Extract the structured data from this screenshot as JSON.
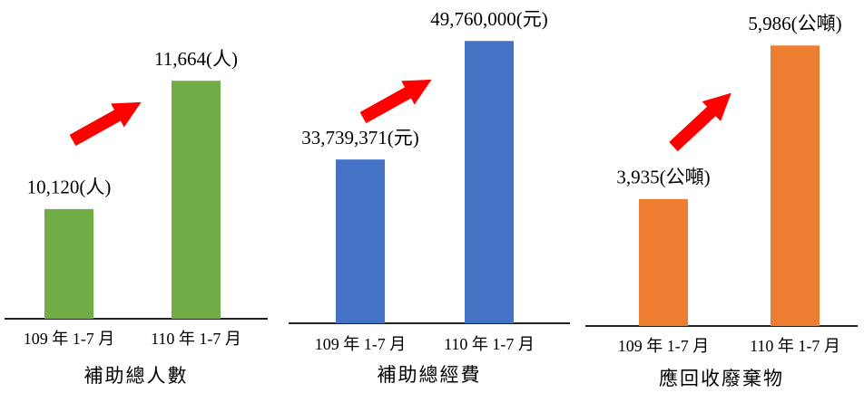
{
  "chart_data": [
    {
      "type": "bar",
      "title": "補助總人數",
      "categories": [
        "109 年 1-7 月",
        "110 年 1-7 月"
      ],
      "values": [
        10120,
        11664
      ],
      "value_labels": [
        "10,120(人)",
        "11,664(人)"
      ],
      "color": "#70ad47",
      "ylim": [
        8800,
        12200
      ]
    },
    {
      "type": "bar",
      "title": "補助總經費",
      "categories": [
        "109 年 1-7 月",
        "110 年 1-7 月"
      ],
      "values": [
        33739371,
        49760000
      ],
      "value_labels": [
        "33,739,371(元)",
        "49,760,000(元)"
      ],
      "color": "#4472c4",
      "ylim": [
        11600000,
        50400000
      ]
    },
    {
      "type": "bar",
      "title": "應回收廢棄物",
      "categories": [
        "109 年 1-7 月",
        "110 年 1-7 月"
      ],
      "values": [
        3935,
        5986
      ],
      "value_labels": [
        "3,935(公噸)",
        "5,986(公噸)"
      ],
      "color": "#ed7d31",
      "ylim": [
        2240,
        6110
      ]
    }
  ]
}
